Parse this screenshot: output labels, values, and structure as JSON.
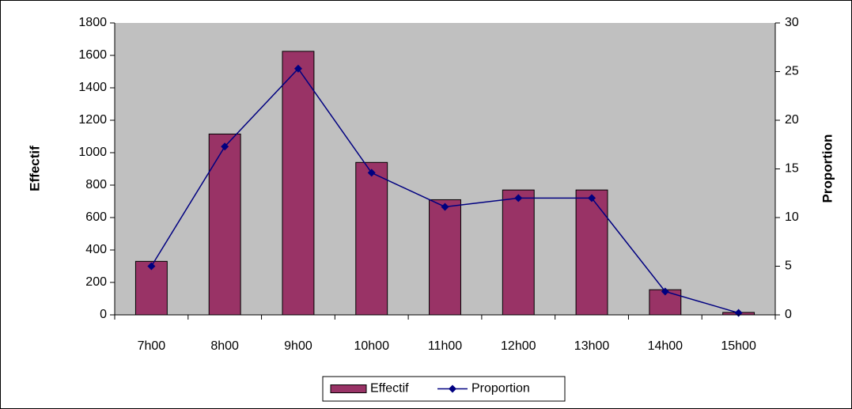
{
  "chart_data": {
    "type": "bar",
    "categories": [
      "7h00",
      "8h00",
      "9h00",
      "10h00",
      "11h00",
      "12h00",
      "13h00",
      "14h00",
      "15h00"
    ],
    "series": [
      {
        "name": "Effectif",
        "type": "bar",
        "color": "#993366",
        "values": [
          330,
          1115,
          1625,
          940,
          710,
          770,
          770,
          155,
          15
        ]
      },
      {
        "name": "Proportion",
        "type": "line",
        "axis": "y2",
        "color": "#000080",
        "values": [
          5.0,
          17.3,
          25.3,
          14.6,
          11.1,
          12.0,
          12.0,
          2.4,
          0.2
        ]
      }
    ],
    "ylabel": "Effectif",
    "y2label": "Proportion",
    "ylim": [
      0,
      1800
    ],
    "yticks": [
      0,
      200,
      400,
      600,
      800,
      1000,
      1200,
      1400,
      1600,
      1800
    ],
    "y2lim": [
      0,
      30
    ],
    "y2ticks": [
      0,
      5,
      10,
      15,
      20,
      25,
      30
    ],
    "plot_background": "#c0c0c0",
    "legend": "bottom"
  }
}
